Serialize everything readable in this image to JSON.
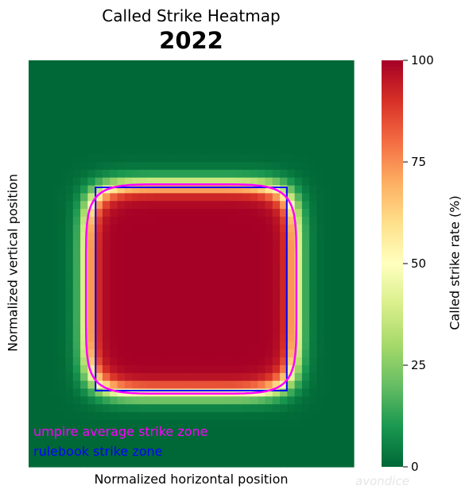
{
  "chart_data": {
    "type": "heatmap",
    "title": "Called Strike Heatmap",
    "subtitle": "2022",
    "xlabel": "Normalized horizontal position",
    "ylabel": "Normalized vertical position",
    "colorbar": {
      "label": "Called strike rate (%)",
      "range": [
        0,
        100
      ],
      "ticks": [
        0,
        25,
        50,
        75,
        100
      ],
      "colormap": "RdYlGn_r"
    },
    "xlim": [
      -1.7,
      1.7
    ],
    "ylim": [
      -1.75,
      2.25
    ],
    "rulebook_zone": {
      "x": [
        -1,
        1
      ],
      "y": [
        -1,
        1
      ]
    },
    "umpire_zone": {
      "half_width": 1.1,
      "half_height": 1.03,
      "shape": "rounded rectangle"
    },
    "strike_rate_profile": {
      "interior_rate": 100,
      "exterior_rate": 0,
      "rate_at_umpire_zone_edge": 50
    },
    "legend": [
      {
        "label": "umpire average strike zone",
        "color": "#ff00ff"
      },
      {
        "label": "rulebook strike zone",
        "color": "#0000ff"
      }
    ],
    "legend_placement": "bottom-left",
    "watermark": "avondice"
  }
}
